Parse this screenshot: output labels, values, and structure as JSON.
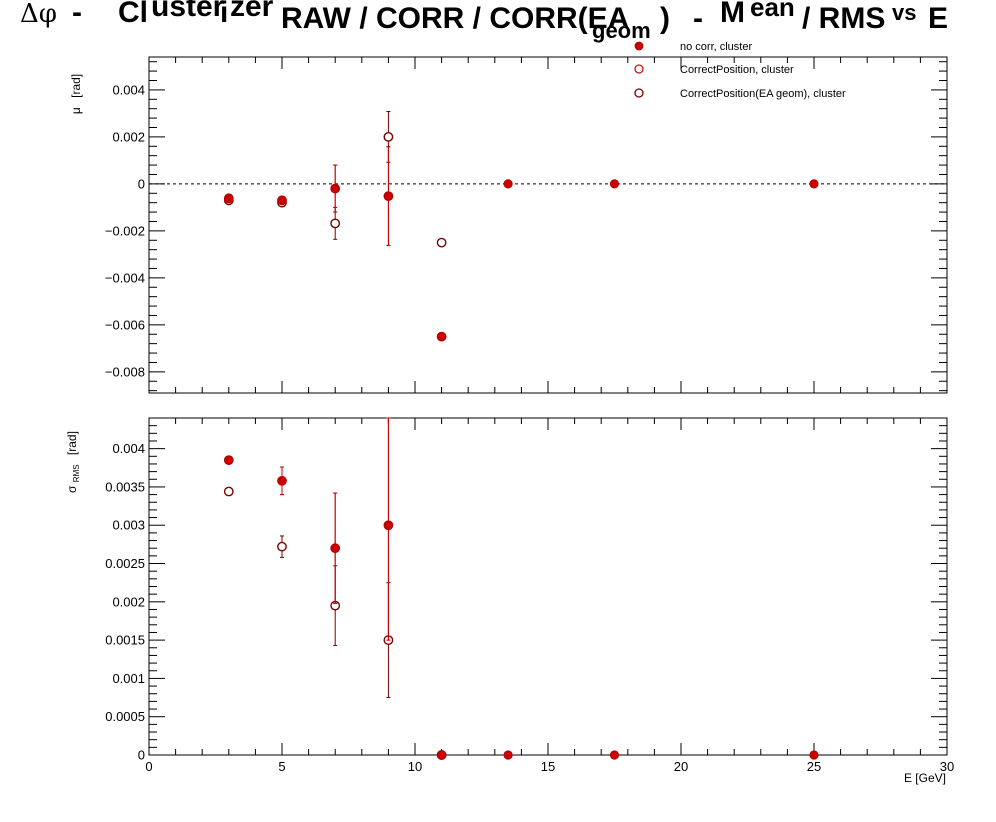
{
  "chart_data": {
    "title": {
      "dphi": "Δφ",
      "dash1": "-",
      "clusterizer_a": "Cl",
      "clusterizer_b": "uster",
      "clusterizer_c": "i",
      "clusterizer_d": "zer",
      "main": "RAW / CORR / CORR(EA",
      "sub": "geom",
      "close": ")",
      "dash2": "-",
      "mean_a": "M",
      "mean_b": "ean",
      "mean_c": "/ RMS",
      "vs": "vs",
      "e": "E"
    },
    "xlabel": "E  [GeV]",
    "xlim": [
      0,
      30
    ],
    "x_ticks": [
      "0",
      "5",
      "10",
      "15",
      "20",
      "25",
      "30"
    ],
    "top": {
      "ylabel_sym": "μ",
      "ylabel_unit": "[rad]",
      "ylim": [
        -0.0089,
        0.0054
      ],
      "y_ticks": [
        "−0.008",
        "−0.006",
        "−0.004",
        "−0.002",
        "0",
        "0.002",
        "0.004"
      ],
      "y_tick_values": [
        -0.008,
        -0.006,
        -0.004,
        -0.002,
        0,
        0.002,
        0.004
      ],
      "reference_line": 0
    },
    "bottom": {
      "ylabel_sym": "σ",
      "ylabel_sub": "RMS",
      "ylabel_unit": "[rad]",
      "ylim": [
        0,
        0.0044
      ],
      "y_ticks": [
        "0",
        "0.0005",
        "0.001",
        "0.0015",
        "0.002",
        "0.0025",
        "0.003",
        "0.0035",
        "0.004"
      ],
      "y_tick_values": [
        0,
        0.0005,
        0.001,
        0.0015,
        0.002,
        0.0025,
        0.003,
        0.0035,
        0.004
      ]
    },
    "legend": {
      "placement": "top-right",
      "entries": [
        "no corr, cluster",
        "CorrectPosition, cluster",
        "CorrectPosition(EA geom), cluster"
      ]
    },
    "series": [
      {
        "name": "no corr, cluster",
        "marker": "filled",
        "color": "#cc0000",
        "x": [
          3,
          5,
          7,
          9,
          11,
          13.5,
          17.5,
          25
        ],
        "mean": [
          -0.0006,
          -0.0007,
          -0.0002,
          -0.00052,
          -0.0065,
          0,
          0,
          0
        ],
        "mean_err": [
          0.0001,
          0.0001,
          0.001,
          0.0021,
          0,
          0,
          0,
          0
        ],
        "rms": [
          0.00385,
          0.00358,
          0.0027,
          0.003,
          0,
          0,
          0,
          0
        ],
        "rms_err": [
          2e-05,
          0.00018,
          0.00072,
          0.0015,
          0,
          0,
          0,
          0
        ]
      },
      {
        "name": "CorrectPosition, cluster",
        "marker": "open",
        "color": "#d01010",
        "x": [
          3,
          5,
          7,
          9,
          11
        ],
        "mean": [
          -0.00062,
          -0.0007,
          -0.0002,
          -0.00052,
          -0.0065
        ],
        "mean_err": [
          0.0001,
          0.0001,
          0.001,
          0.0021,
          0
        ],
        "rms": [
          0.00385,
          0.00358,
          0.0027,
          0.003,
          0
        ],
        "rms_err": [
          2e-05,
          0.00018,
          0.00072,
          0.0015,
          0
        ]
      },
      {
        "name": "CorrectPosition(EA geom), cluster",
        "marker": "open",
        "color": "#7a0000",
        "x": [
          3,
          5,
          7,
          9,
          11
        ],
        "mean": [
          -0.0007,
          -0.0008,
          -0.00168,
          0.002,
          -0.0025
        ],
        "mean_err": [
          0.0001,
          0.0001,
          0.00068,
          0.00108,
          0
        ],
        "rms": [
          0.00344,
          0.00272,
          0.00195,
          0.0015,
          0
        ],
        "rms_err": [
          1e-05,
          0.00014,
          0.00052,
          0.00075,
          0
        ]
      }
    ]
  }
}
